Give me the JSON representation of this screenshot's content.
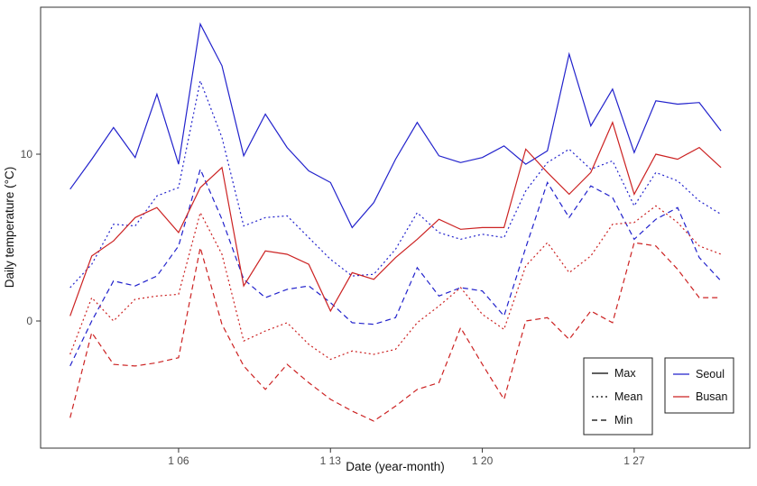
{
  "chart_data": {
    "type": "line",
    "title": "",
    "xlabel": "Date (year-month)",
    "ylabel": "Daily temperature (°C)",
    "x": [
      1,
      2,
      3,
      4,
      5,
      6,
      7,
      8,
      9,
      10,
      11,
      12,
      13,
      14,
      15,
      16,
      17,
      18,
      19,
      20,
      21,
      22,
      23,
      24,
      25,
      26,
      27,
      28,
      29,
      30,
      31
    ],
    "x_ticks": [
      {
        "day": 6,
        "label": "1 06"
      },
      {
        "day": 13,
        "label": "1 13"
      },
      {
        "day": 20,
        "label": "1 20"
      },
      {
        "day": 27,
        "label": "1 27"
      }
    ],
    "y_ticks": [
      {
        "value": 0,
        "label": "0"
      },
      {
        "value": 10,
        "label": "10"
      }
    ],
    "ylim": [
      -7.6,
      18.8
    ],
    "xlim": [
      -0.4,
      32.4
    ],
    "grid": "off",
    "series": [
      {
        "name": "Seoul Max",
        "city": "Seoul",
        "stat": "Max",
        "color": "#2222cc",
        "linetype": "solid",
        "values": [
          7.9,
          9.7,
          11.6,
          9.8,
          13.6,
          9.4,
          17.8,
          15.3,
          9.9,
          12.4,
          10.4,
          9.0,
          8.3,
          5.6,
          7.1,
          9.7,
          11.9,
          9.9,
          9.5,
          9.8,
          10.5,
          9.4,
          10.2,
          16.0,
          11.7,
          13.9,
          10.1,
          13.2,
          13.0,
          13.1,
          11.4
        ]
      },
      {
        "name": "Seoul Mean",
        "city": "Seoul",
        "stat": "Mean",
        "color": "#2222cc",
        "linetype": "dotted",
        "values": [
          2.0,
          3.4,
          5.8,
          5.7,
          7.5,
          8.0,
          14.4,
          11.0,
          5.7,
          6.2,
          6.3,
          5.0,
          3.7,
          2.7,
          2.8,
          4.3,
          6.5,
          5.3,
          4.9,
          5.2,
          5.0,
          7.8,
          9.5,
          10.3,
          9.1,
          9.6,
          6.9,
          8.9,
          8.4,
          7.2,
          6.4
        ]
      },
      {
        "name": "Seoul Min",
        "city": "Seoul",
        "stat": "Min",
        "color": "#2222cc",
        "linetype": "dashed",
        "values": [
          -2.7,
          0.0,
          2.4,
          2.1,
          2.7,
          4.5,
          9.1,
          6.1,
          2.5,
          1.4,
          1.9,
          2.1,
          1.1,
          -0.1,
          -0.2,
          0.2,
          3.2,
          1.5,
          2.0,
          1.8,
          0.3,
          4.4,
          8.3,
          6.2,
          8.1,
          7.4,
          4.9,
          6.1,
          6.8,
          3.8,
          2.4
        ]
      },
      {
        "name": "Busan Max",
        "city": "Busan",
        "stat": "Max",
        "color": "#cc2222",
        "linetype": "solid",
        "values": [
          0.3,
          3.9,
          4.8,
          6.2,
          6.8,
          5.3,
          8.0,
          9.2,
          2.1,
          4.2,
          4.0,
          3.4,
          0.6,
          2.9,
          2.5,
          3.8,
          4.9,
          6.1,
          5.5,
          5.6,
          5.6,
          10.3,
          8.9,
          7.6,
          8.9,
          11.9,
          7.6,
          10.0,
          9.7,
          10.4,
          9.2
        ]
      },
      {
        "name": "Busan Mean",
        "city": "Busan",
        "stat": "Mean",
        "color": "#cc2222",
        "linetype": "dotted",
        "values": [
          -2.0,
          1.4,
          0.0,
          1.3,
          1.5,
          1.6,
          6.5,
          4.0,
          -1.2,
          -0.6,
          -0.1,
          -1.4,
          -2.3,
          -1.8,
          -2.0,
          -1.7,
          -0.1,
          0.9,
          2.0,
          0.4,
          -0.5,
          3.3,
          4.7,
          2.9,
          3.9,
          5.8,
          5.9,
          6.9,
          5.9,
          4.5,
          4.0
        ]
      },
      {
        "name": "Busan Min",
        "city": "Busan",
        "stat": "Min",
        "color": "#cc2222",
        "linetype": "dashed",
        "values": [
          -5.8,
          -0.7,
          -2.6,
          -2.7,
          -2.5,
          -2.2,
          4.4,
          -0.2,
          -2.7,
          -4.1,
          -2.6,
          -3.7,
          -4.7,
          -5.4,
          -6.0,
          -5.1,
          -4.1,
          -3.7,
          -0.4,
          -2.6,
          -4.7,
          0.0,
          0.2,
          -1.1,
          0.6,
          -0.1,
          4.7,
          4.5,
          3.1,
          1.4,
          1.4
        ]
      }
    ],
    "legend_position": "bottom-right"
  },
  "axes": {
    "xlabel": "Date (year-month)",
    "ylabel": "Daily temperature (°C)"
  },
  "legends": {
    "linetype": {
      "items": [
        {
          "label": "Max",
          "linetype": "solid",
          "color": "#000000"
        },
        {
          "label": "Mean",
          "linetype": "dotted",
          "color": "#000000"
        },
        {
          "label": "Min",
          "linetype": "dashed",
          "color": "#000000"
        }
      ]
    },
    "city": {
      "items": [
        {
          "label": "Seoul",
          "linetype": "solid",
          "color": "#2222cc"
        },
        {
          "label": "Busan",
          "linetype": "solid",
          "color": "#cc2222"
        }
      ]
    }
  },
  "colors": {
    "seoul": "#2222cc",
    "busan": "#cc2222",
    "panel_border": "#333333",
    "tick_text": "#4d4d4d",
    "background": "#ffffff"
  }
}
